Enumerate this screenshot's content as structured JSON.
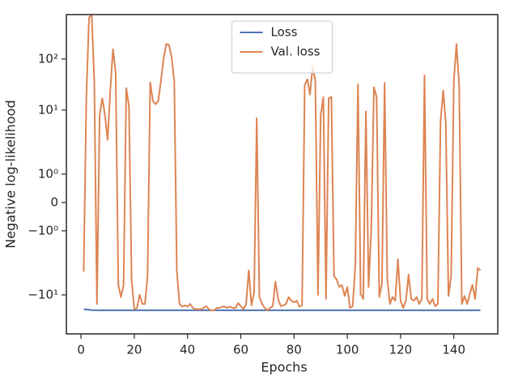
{
  "chart_data": {
    "type": "line",
    "xlabel": "Epochs",
    "ylabel": "Negative log-likelihood",
    "yscale": "symlog",
    "linthresh": 2,
    "legend": "upper center",
    "grid": false,
    "xlim": [
      -5.5,
      156.5
    ],
    "xticks": [
      0,
      20,
      40,
      60,
      80,
      100,
      120,
      140
    ],
    "ylim": [
      -58,
      740
    ],
    "yticks": [
      {
        "value": -10,
        "label": "−10¹"
      },
      {
        "value": -1,
        "label": "−10⁰"
      },
      0,
      {
        "value": 1,
        "label": "10⁰"
      },
      {
        "value": 10,
        "label": "10¹"
      },
      {
        "value": 100,
        "label": "10²"
      }
    ],
    "x": [
      1,
      2,
      3,
      4,
      5,
      6,
      7,
      8,
      9,
      10,
      11,
      12,
      13,
      14,
      15,
      16,
      17,
      18,
      19,
      20,
      21,
      22,
      23,
      24,
      25,
      26,
      27,
      28,
      29,
      30,
      31,
      32,
      33,
      34,
      35,
      36,
      37,
      38,
      39,
      40,
      41,
      42,
      43,
      44,
      45,
      46,
      47,
      48,
      49,
      50,
      51,
      52,
      53,
      54,
      55,
      56,
      57,
      58,
      59,
      60,
      61,
      62,
      63,
      64,
      65,
      66,
      67,
      68,
      69,
      70,
      71,
      72,
      73,
      74,
      75,
      76,
      77,
      78,
      79,
      80,
      81,
      82,
      83,
      84,
      85,
      86,
      87,
      88,
      89,
      90,
      91,
      92,
      93,
      94,
      95,
      96,
      97,
      98,
      99,
      100,
      101,
      102,
      103,
      104,
      105,
      106,
      107,
      108,
      109,
      110,
      111,
      112,
      113,
      114,
      115,
      116,
      117,
      118,
      119,
      120,
      121,
      122,
      123,
      124,
      125,
      126,
      127,
      128,
      129,
      130,
      131,
      132,
      133,
      134,
      135,
      136,
      137,
      138,
      139,
      140,
      141,
      142,
      143,
      144,
      145,
      146,
      147,
      148,
      149,
      150
    ],
    "series": [
      {
        "name": "Loss",
        "color": "#4c72b0",
        "values": [
          -19,
          -19.3,
          -19.6,
          -19.8,
          -19.9,
          -19.9,
          -20,
          -20,
          -20,
          -20,
          -20,
          -20,
          -20,
          -20,
          -20,
          -20,
          -20,
          -20,
          -20,
          -20,
          -20,
          -20,
          -20,
          -20,
          -20,
          -20,
          -20,
          -20,
          -20,
          -20,
          -20,
          -20,
          -20,
          -20,
          -20,
          -20,
          -20,
          -20,
          -20,
          -20,
          -20,
          -20,
          -20,
          -20,
          -20,
          -20,
          -20,
          -20,
          -20,
          -20,
          -20,
          -20,
          -20,
          -20,
          -20,
          -20,
          -20,
          -20,
          -20,
          -20,
          -20,
          -20,
          -20,
          -20,
          -20,
          -20,
          -20,
          -20,
          -20,
          -20,
          -20,
          -20,
          -20,
          -20,
          -20,
          -20,
          -20,
          -20,
          -20,
          -20,
          -20,
          -20,
          -20,
          -20,
          -20,
          -20,
          -20,
          -20,
          -20,
          -20,
          -20,
          -20,
          -20,
          -20,
          -20,
          -20,
          -20,
          -20,
          -20,
          -20,
          -20,
          -20,
          -20,
          -20,
          -20,
          -20,
          -20,
          -20,
          -20,
          -20,
          -20,
          -20,
          -20,
          -20,
          -20,
          -20,
          -20,
          -20,
          -20,
          -20,
          -20,
          -20,
          -20,
          -20,
          -20,
          -20,
          -20,
          -20,
          -20,
          -20,
          -20,
          -20,
          -20,
          -20,
          -20,
          -20,
          -20,
          -20,
          -20,
          -20,
          -20,
          -20,
          -20,
          -20,
          -20,
          -20,
          -20,
          -20,
          -20,
          -20
        ]
      },
      {
        "name": "Val. loss",
        "color": "#dd8452",
        "values": [
          -3.5,
          18,
          650,
          720,
          37,
          -15,
          8,
          17,
          8,
          2.6,
          25,
          155,
          54,
          -6.4,
          -11,
          -6.4,
          27,
          12,
          -5,
          -19,
          -18,
          -10,
          -15,
          -15,
          -4.3,
          35,
          15,
          13,
          15,
          37,
          100,
          196,
          190,
          110,
          37,
          -3.5,
          -15,
          -17,
          -16,
          -17,
          -15,
          -18,
          -19,
          -19,
          -19,
          -18,
          -16.6,
          -19,
          -20,
          -20,
          -18,
          -18,
          -17,
          -17,
          -18,
          -17,
          -18,
          -18,
          -14.5,
          -16.6,
          -19,
          -15,
          -3.3,
          -16,
          -9,
          6.9,
          -11,
          -15,
          -18,
          -20,
          -18,
          -16.6,
          -5.5,
          -12,
          -16.6,
          -16,
          -15,
          -11,
          -13,
          -14,
          -13,
          -17,
          -16,
          31,
          40,
          20,
          70,
          37,
          -10,
          7.8,
          18,
          -12,
          17,
          18,
          -4.3,
          -5,
          -7,
          -6.4,
          -10.5,
          -7,
          -18,
          -16.6,
          -2.7,
          32,
          -9.5,
          -12,
          9.4,
          -7,
          -0.95,
          28,
          18,
          -11,
          -6,
          34,
          -5,
          -15,
          -11,
          -13,
          -2,
          -13,
          -18,
          -13,
          -4,
          -12,
          -13,
          -11,
          -15,
          -12,
          48,
          -12,
          -15,
          -12,
          -16.6,
          -15,
          6,
          24,
          5.5,
          -10.5,
          -4.3,
          37,
          196,
          31,
          -15,
          -10.5,
          -15,
          -9.5,
          -6.4,
          -12,
          -3,
          -3.3
        ]
      }
    ]
  }
}
